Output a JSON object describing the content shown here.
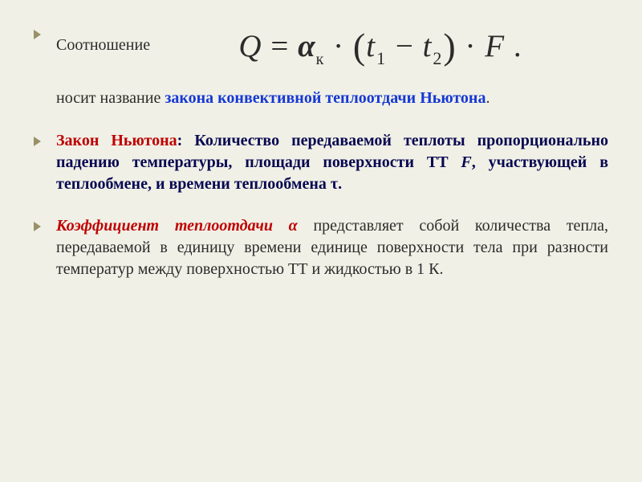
{
  "colors": {
    "background": "#f0f0e6",
    "body_text": "#2b2b2b",
    "blue": "#1538d4",
    "dark_navy": "#080852",
    "red": "#bf0000",
    "chevron": "#999066"
  },
  "typography": {
    "body_font": "Georgia / Times New Roman, serif",
    "body_size_pt": 15,
    "formula_size_pt": 29
  },
  "formula": {
    "lhs": "Q",
    "eq": " = ",
    "alpha": "α",
    "alpha_sub": "к",
    "dot1": " · ",
    "lparen": "(",
    "t1_var": "t",
    "t1_sub": "1",
    "minus": " − ",
    "t2_var": "t",
    "t2_sub": "2",
    "rparen": ")",
    "dot2": " · ",
    "F": "F",
    "period": " ."
  },
  "p0_lead": "Соотношение",
  "p1_pre": "носит название ",
  "p1_blue": "закона конвективной теплоотдачи Ньютона",
  "p1_post": ".",
  "p2_red": "Закон Ньютона",
  "p2_colon": ": ",
  "p2_body_a": "Количество передаваемой теплоты пропорционально падению температуры, площади поверхности ТТ ",
  "p2_F": "F",
  "p2_body_b": ", участвующей в теплообмене, и времени теплообмена τ.",
  "p3_red": "Коэффициент теплоотдачи  α",
  "p3_body": "  представляет собой количества тепла, передаваемой в единицу времени единице поверхности тела при разности температур между поверхностью ТТ и жидкостью в 1 К."
}
